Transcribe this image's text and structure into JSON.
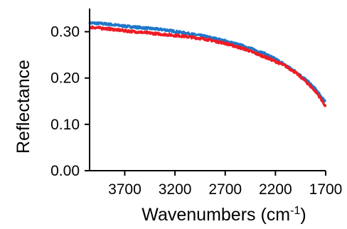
{
  "chart_data": {
    "type": "line",
    "xlabel": "Wavenumbers (cm",
    "xlabel_superscript": "-1",
    "xlabel_suffix": ")",
    "ylabel": "Reflectance",
    "xlim": [
      4050,
      1700
    ],
    "ylim": [
      0.0,
      0.35
    ],
    "x_reversed": true,
    "grid": false,
    "legend": "none",
    "x_ticks": [
      3700,
      3200,
      2700,
      2200,
      1700
    ],
    "x_tick_labels": [
      "3700",
      "3200",
      "2700",
      "2200",
      "1700"
    ],
    "y_ticks": [
      0.0,
      0.1,
      0.2,
      0.3
    ],
    "y_tick_labels": [
      "0.00",
      "0.10",
      "0.20",
      "0.30"
    ],
    "series": [
      {
        "color": "#1f77c9",
        "x": [
          4050,
          3900,
          3700,
          3500,
          3300,
          3100,
          2900,
          2700,
          2500,
          2300,
          2200,
          2100,
          2000,
          1900,
          1800,
          1750,
          1700
        ],
        "y": [
          0.319,
          0.317,
          0.312,
          0.308,
          0.304,
          0.297,
          0.29,
          0.28,
          0.268,
          0.252,
          0.241,
          0.228,
          0.214,
          0.197,
          0.176,
          0.161,
          0.147
        ]
      },
      {
        "color": "#ee1c25",
        "x": [
          4050,
          3900,
          3700,
          3500,
          3300,
          3100,
          2900,
          2700,
          2500,
          2300,
          2200,
          2100,
          2000,
          1900,
          1800,
          1750,
          1700
        ],
        "y": [
          0.31,
          0.307,
          0.302,
          0.298,
          0.294,
          0.29,
          0.284,
          0.275,
          0.262,
          0.245,
          0.236,
          0.226,
          0.212,
          0.193,
          0.171,
          0.156,
          0.138
        ]
      }
    ]
  }
}
